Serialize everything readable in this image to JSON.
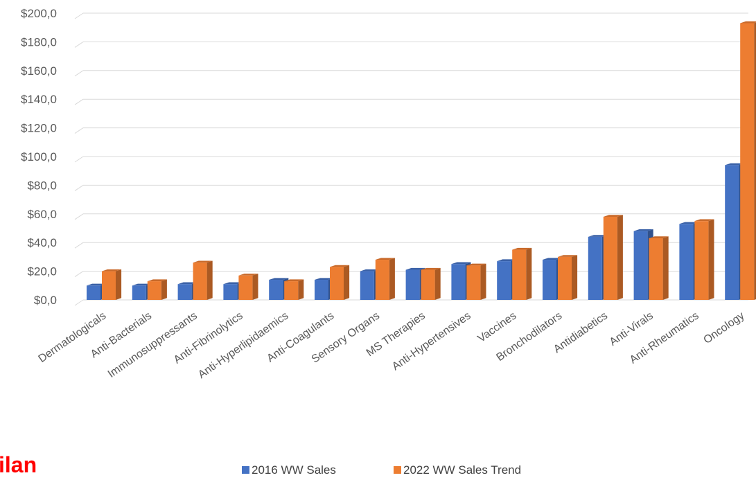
{
  "colors": {
    "series_2016": "#4472c4",
    "series_2022": "#ed7d31",
    "grid": "#d9d9d9",
    "brand": "#ff0000"
  },
  "brand_fragment": "ilan",
  "chart_data": {
    "type": "bar",
    "categories": [
      "Dermatologicals",
      "Anti-Bacterials",
      "Immunosuppressants",
      "Anti-Fibrinolytics",
      "Anti-Hyperlipidaemics",
      "Anti-Coagulants",
      "Sensory Organs",
      "MS Therapies",
      "Anti-Hypertensives",
      "Vaccines",
      "Bronchodilators",
      "Antidiabetics",
      "Anti-Virals",
      "Anti-Rheumatics",
      "Oncology"
    ],
    "series": [
      {
        "name": "2016 WW Sales",
        "values": [
          10,
          10,
          11,
          11,
          14,
          14,
          20,
          21,
          25,
          27,
          28,
          44,
          48,
          53,
          94
        ]
      },
      {
        "name": "2022 WW Sales Trend",
        "values": [
          20,
          13,
          26,
          17,
          13,
          23,
          28,
          21,
          24,
          35,
          30,
          58,
          43,
          55,
          193
        ]
      }
    ],
    "yticks": [
      "$0,0",
      "$20,0",
      "$40,0",
      "$60,0",
      "$80,0",
      "$100,0",
      "$120,0",
      "$140,0",
      "$160,0",
      "$180,0",
      "$200,0"
    ],
    "ylim": [
      0,
      200
    ],
    "grid": true,
    "legend_position": "bottom",
    "title": "",
    "xlabel": "",
    "ylabel": ""
  }
}
